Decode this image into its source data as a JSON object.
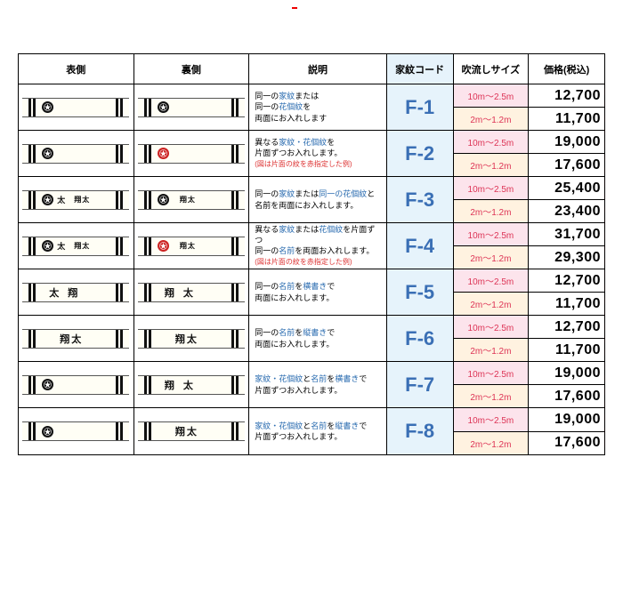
{
  "headers": {
    "front": "表側",
    "back": "裏側",
    "desc": "説明",
    "code": "家紋コード",
    "size": "吹流しサイズ",
    "price": "価格(税込)"
  },
  "sizes": {
    "big": "10m～2.5m",
    "small": "2m～1.2m"
  },
  "rows": [
    {
      "code": "F-1",
      "price_big": "12,700",
      "price_small": "11,700",
      "desc": [
        {
          "t": "同一の",
          "c": ""
        },
        {
          "t": "家紋",
          "c": "hl"
        },
        {
          "t": "または",
          "c": ""
        }
      ],
      "desc2": [
        {
          "t": "同一の",
          "c": ""
        },
        {
          "t": "花個紋",
          "c": "hl"
        },
        {
          "t": "を",
          "c": ""
        }
      ],
      "desc3": [
        {
          "t": "両面にお入れします",
          "c": ""
        }
      ],
      "front": {
        "mon": "black",
        "txt": "",
        "mode": "mon"
      },
      "back": {
        "mon": "black",
        "txt": "",
        "mode": "mon"
      }
    },
    {
      "code": "F-2",
      "price_big": "19,000",
      "price_small": "17,600",
      "desc": [
        {
          "t": "異なる",
          "c": ""
        },
        {
          "t": "家紋・花個紋",
          "c": "hl"
        },
        {
          "t": "を",
          "c": ""
        }
      ],
      "desc2": [
        {
          "t": "片面ずつお入れします。",
          "c": ""
        }
      ],
      "desc3": [
        {
          "t": "(図は片面の紋を赤指定した例)",
          "c": "hlr"
        }
      ],
      "front": {
        "mon": "black",
        "txt": "",
        "mode": "mon"
      },
      "back": {
        "mon": "red",
        "txt": "",
        "mode": "mon"
      }
    },
    {
      "code": "F-3",
      "price_big": "25,400",
      "price_small": "23,400",
      "desc": [
        {
          "t": "同一の",
          "c": ""
        },
        {
          "t": "家紋",
          "c": "hl"
        },
        {
          "t": "または",
          "c": ""
        },
        {
          "t": "同一の花個紋",
          "c": "hl"
        },
        {
          "t": "と",
          "c": ""
        }
      ],
      "desc2": [
        {
          "t": "名前を両面にお入れします。",
          "c": ""
        }
      ],
      "desc3": [],
      "front": {
        "mon": "black",
        "txt": "太",
        "txt2": "翔太",
        "mode": "montxt"
      },
      "back": {
        "mon": "black",
        "txt": "",
        "txt2": "翔太",
        "mode": "montxt"
      }
    },
    {
      "code": "F-4",
      "price_big": "31,700",
      "price_small": "29,300",
      "desc": [
        {
          "t": "異なる",
          "c": ""
        },
        {
          "t": "家紋",
          "c": "hl"
        },
        {
          "t": "または",
          "c": ""
        },
        {
          "t": "花個紋",
          "c": "hl"
        },
        {
          "t": "を片面ずつ",
          "c": ""
        }
      ],
      "desc2": [
        {
          "t": "同一の",
          "c": ""
        },
        {
          "t": "名前",
          "c": "hl"
        },
        {
          "t": "を両面お入れします。",
          "c": ""
        }
      ],
      "desc3": [
        {
          "t": "(図は片面の紋を赤指定した例)",
          "c": "hlr"
        }
      ],
      "front": {
        "mon": "black",
        "txt": "太",
        "txt2": "翔太",
        "mode": "montxt"
      },
      "back": {
        "mon": "red",
        "txt": "",
        "txt2": "翔太",
        "mode": "montxt"
      }
    },
    {
      "code": "F-5",
      "price_big": "12,700",
      "price_small": "11,700",
      "desc": [
        {
          "t": "同一の",
          "c": ""
        },
        {
          "t": "名前",
          "c": "hl"
        },
        {
          "t": "を",
          "c": ""
        },
        {
          "t": "横書き",
          "c": "hl"
        },
        {
          "t": "で",
          "c": ""
        }
      ],
      "desc2": [
        {
          "t": "両面にお入れします。",
          "c": ""
        }
      ],
      "desc3": [],
      "front": {
        "txt": "太翔",
        "mode": "txth"
      },
      "back": {
        "txt": "翔太",
        "mode": "txth"
      }
    },
    {
      "code": "F-6",
      "price_big": "12,700",
      "price_small": "11,700",
      "desc": [
        {
          "t": "同一の",
          "c": ""
        },
        {
          "t": "名前",
          "c": "hl"
        },
        {
          "t": "を",
          "c": ""
        },
        {
          "t": "縦書き",
          "c": "hl"
        },
        {
          "t": "で",
          "c": ""
        }
      ],
      "desc2": [
        {
          "t": "両面にお入れします。",
          "c": ""
        }
      ],
      "desc3": [],
      "front": {
        "txt": "翔太",
        "mode": "txtv"
      },
      "back": {
        "txt": "翔太",
        "mode": "txtv"
      }
    },
    {
      "code": "F-7",
      "price_big": "19,000",
      "price_small": "17,600",
      "desc": [
        {
          "t": "家紋・花個紋",
          "c": "hl"
        },
        {
          "t": "と",
          "c": ""
        },
        {
          "t": "名前",
          "c": "hl"
        },
        {
          "t": "を",
          "c": ""
        },
        {
          "t": "横書き",
          "c": "hl"
        },
        {
          "t": "で",
          "c": ""
        }
      ],
      "desc2": [
        {
          "t": "片面ずつお入れします。",
          "c": ""
        }
      ],
      "desc3": [],
      "front": {
        "mon": "black",
        "txt": "",
        "mode": "mon"
      },
      "back": {
        "txt": "翔太",
        "mode": "txth"
      }
    },
    {
      "code": "F-8",
      "price_big": "19,000",
      "price_small": "17,600",
      "desc": [
        {
          "t": "家紋・花個紋",
          "c": "hl"
        },
        {
          "t": "と",
          "c": ""
        },
        {
          "t": "名前",
          "c": "hl"
        },
        {
          "t": "を",
          "c": ""
        },
        {
          "t": "縦書き",
          "c": "hl"
        },
        {
          "t": "で",
          "c": ""
        }
      ],
      "desc2": [
        {
          "t": "片面ずつお入れします。",
          "c": ""
        }
      ],
      "desc3": [],
      "front": {
        "mon": "black",
        "txt": "",
        "mode": "mon"
      },
      "back": {
        "txt": "翔太",
        "mode": "txtv"
      }
    }
  ],
  "slash": {
    "color": "#e00",
    "width": 1
  }
}
